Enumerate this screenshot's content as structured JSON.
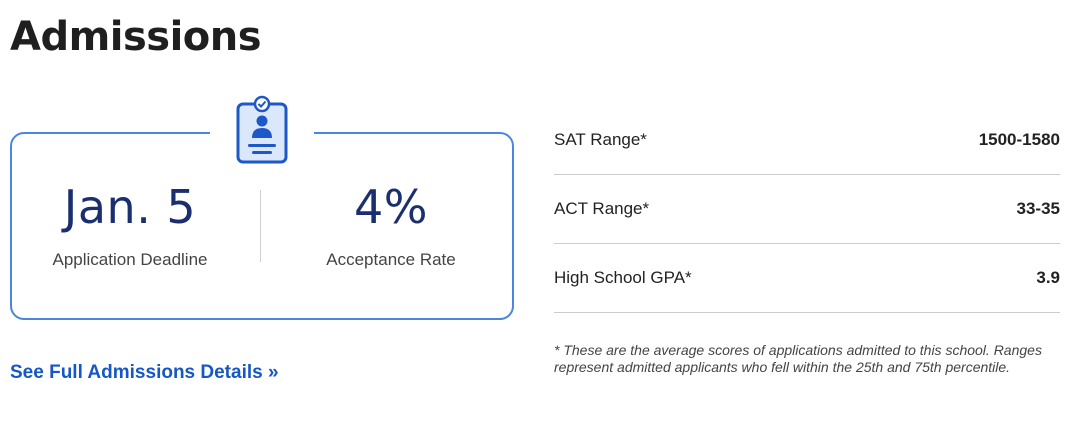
{
  "title": "Admissions",
  "card": {
    "icon": "application-clipboard-icon",
    "deadline": {
      "value": "Jan. 5",
      "label": "Application Deadline"
    },
    "acceptance": {
      "value": "4%",
      "label": "Acceptance Rate"
    }
  },
  "link_text": "See Full Admissions Details »",
  "scores": [
    {
      "label": "SAT Range*",
      "value": "1500-1580"
    },
    {
      "label": "ACT Range*",
      "value": "33-35"
    },
    {
      "label": "High School GPA*",
      "value": "3.9"
    }
  ],
  "footnote": "* These are the average scores of applications admitted to this school. Ranges represent admitted applicants who fell within the 25th and 75th percentile.",
  "colors": {
    "accent": "#4a86e0",
    "link": "#1557c5",
    "stat": "#1b2f6e"
  }
}
